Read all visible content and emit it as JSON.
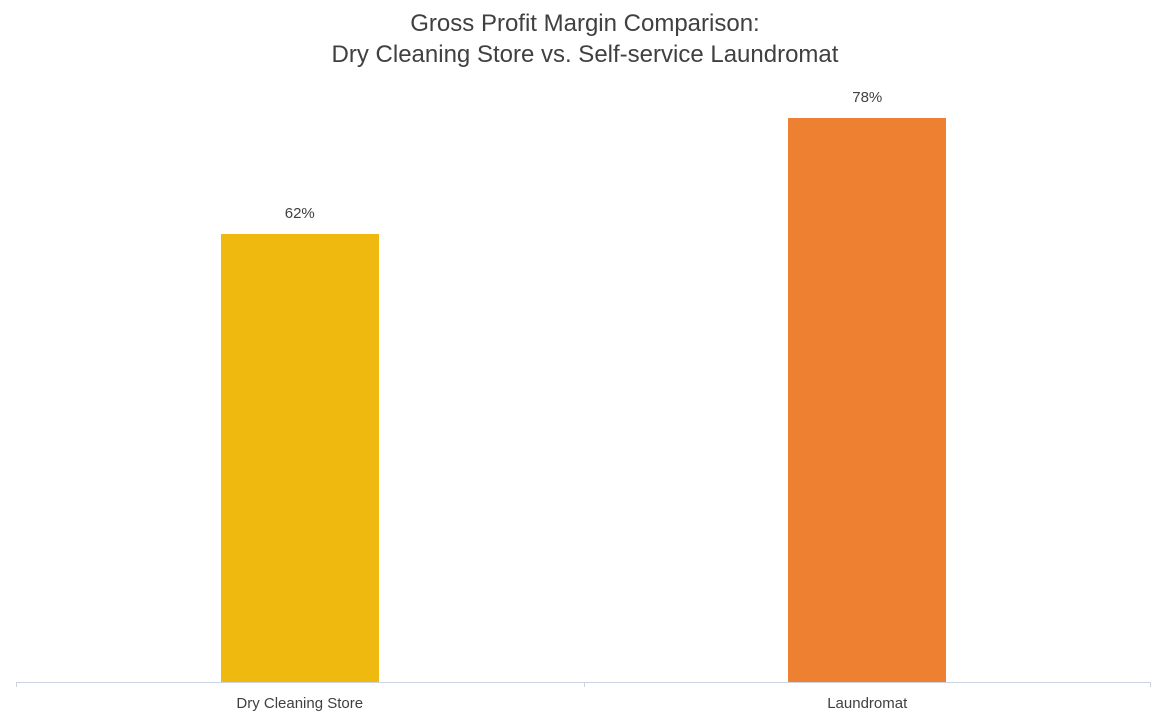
{
  "chart_data": {
    "type": "bar",
    "title": "Gross Profit Margin Comparison: Dry Cleaning Store vs. Self-service Laundromat",
    "title_lines": [
      "Gross Profit Margin Comparison:",
      "Dry Cleaning Store vs. Self-service Laundromat"
    ],
    "categories": [
      "Dry Cleaning Store",
      "Laundromat"
    ],
    "values": [
      62,
      78
    ],
    "data_labels": [
      "62%",
      "78%"
    ],
    "bar_colors": [
      "#F0B90F",
      "#ED8131"
    ],
    "xlabel": "",
    "ylabel": "",
    "ylim": [
      0,
      80
    ],
    "grid": false,
    "legend": false,
    "axis_line_color": "#CBD3E1",
    "text_color": "#404040",
    "background_color": "#FFFFFF"
  }
}
